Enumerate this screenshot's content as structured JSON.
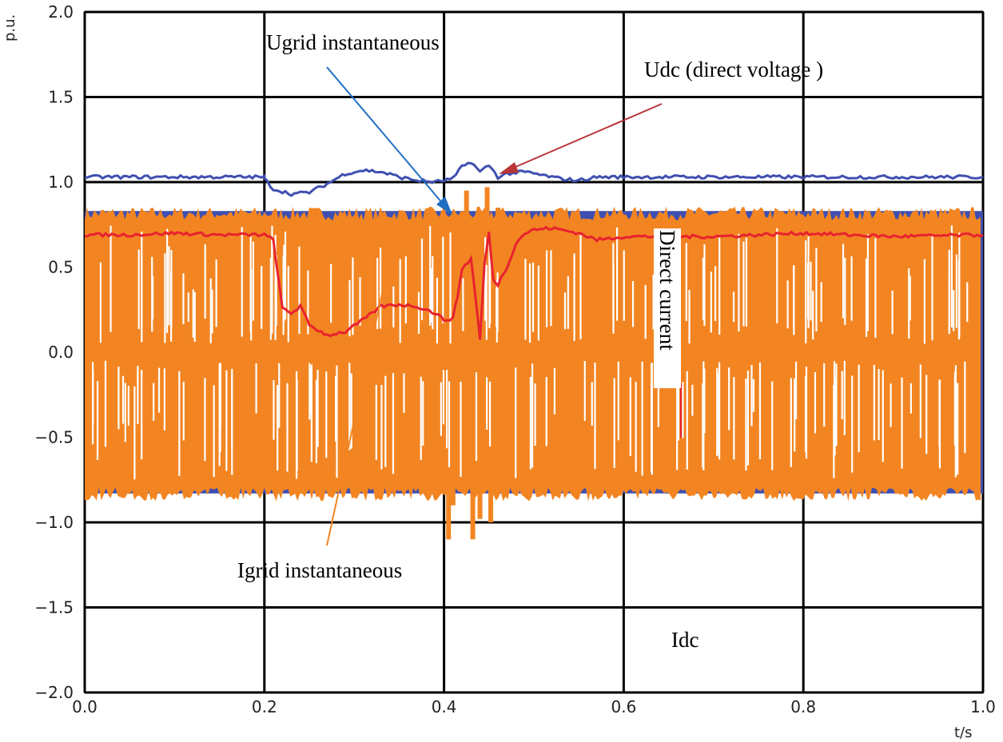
{
  "chart_data": {
    "type": "line",
    "title": "",
    "xlabel": "t/s",
    "ylabel": "p.u.",
    "xlim": [
      0.0,
      1.0
    ],
    "ylim": [
      -2.0,
      2.0
    ],
    "x_ticks": [
      "0.0",
      "0.2",
      "0.4",
      "0.6",
      "0.8",
      "1.0"
    ],
    "y_ticks": [
      "2.0",
      "1.5",
      "1.0",
      "0.5",
      "0.0",
      "−0.5",
      "−1.0",
      "−1.5",
      "−2.0"
    ],
    "grid": true,
    "colors": {
      "udc": "#3f4fb0",
      "idc": "#e8222f",
      "igrid": "#f28522",
      "ugrid": "#3f4fb0",
      "arrow_ugrid": "#1f6fc2",
      "arrow_udc": "#b8353a",
      "arrow_igrid": "#f28522",
      "grid": "#000000"
    },
    "series": [
      {
        "key": "udc",
        "x": [
          0.0,
          0.05,
          0.1,
          0.15,
          0.2,
          0.2,
          0.21,
          0.23,
          0.25,
          0.27,
          0.29,
          0.31,
          0.33,
          0.35,
          0.37,
          0.39,
          0.41,
          0.42,
          0.43,
          0.44,
          0.45,
          0.46,
          0.47,
          0.49,
          0.51,
          0.53,
          0.55,
          0.57,
          0.6,
          0.7,
          0.8,
          0.9,
          1.0
        ],
        "values": [
          1.03,
          1.03,
          1.03,
          1.03,
          1.03,
          1.02,
          0.96,
          0.93,
          0.94,
          0.99,
          1.05,
          1.07,
          1.06,
          1.03,
          1.01,
          1.0,
          1.02,
          1.09,
          1.12,
          1.06,
          1.1,
          1.03,
          1.05,
          1.06,
          1.04,
          1.02,
          1.01,
          1.03,
          1.03,
          1.03,
          1.03,
          1.03,
          1.03
        ]
      },
      {
        "key": "idc",
        "x": [
          0.0,
          0.05,
          0.1,
          0.15,
          0.2,
          0.21,
          0.215,
          0.22,
          0.23,
          0.24,
          0.25,
          0.27,
          0.29,
          0.31,
          0.33,
          0.35,
          0.37,
          0.39,
          0.4,
          0.41,
          0.415,
          0.42,
          0.43,
          0.435,
          0.44,
          0.445,
          0.45,
          0.455,
          0.46,
          0.47,
          0.48,
          0.49,
          0.5,
          0.52,
          0.55,
          0.57,
          0.6,
          0.7,
          0.8,
          0.9,
          1.0
        ],
        "values": [
          0.69,
          0.69,
          0.7,
          0.69,
          0.69,
          0.66,
          0.45,
          0.26,
          0.23,
          0.27,
          0.16,
          0.1,
          0.12,
          0.19,
          0.27,
          0.28,
          0.27,
          0.23,
          0.19,
          0.2,
          0.33,
          0.49,
          0.55,
          0.33,
          0.07,
          0.52,
          0.7,
          0.42,
          0.4,
          0.5,
          0.64,
          0.7,
          0.72,
          0.73,
          0.7,
          0.66,
          0.68,
          0.68,
          0.7,
          0.68,
          0.69
        ]
      }
    ],
    "igrid_band": {
      "upper": 0.8,
      "lower": -0.82,
      "spike_min": -1.1,
      "spike_max": 0.97
    },
    "ugrid_band": {
      "upper": 0.83,
      "lower": -0.83
    },
    "annotations": {
      "ugrid": "Ugrid instantaneous",
      "udc": "Udc (direct voltage )",
      "direct_current": "Direct current",
      "igrid": "Igrid instantaneous",
      "idc": "Idc"
    }
  }
}
